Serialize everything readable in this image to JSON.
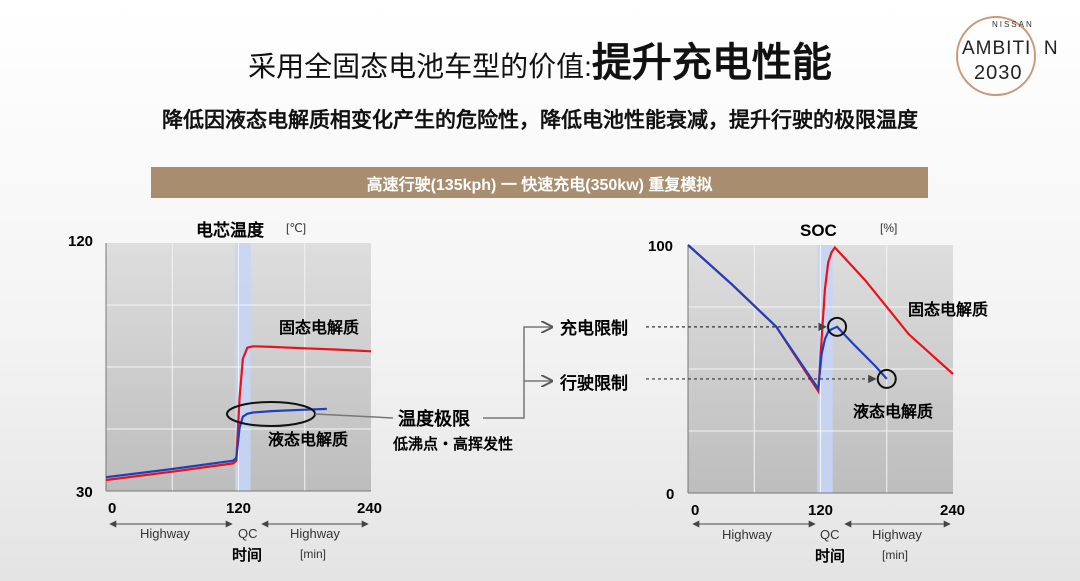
{
  "header": {
    "title_prefix": "采用全固态电池车型的价值:",
    "title_main": "提升充电性能",
    "subtitle": "降低因液态电解质相变化产生的危险性，降低电池性能衰减，提升行驶的极限温度",
    "banner": "高速行驶(135kph) 一 快速充电(350kw) 重复模拟"
  },
  "logo": {
    "brand": "NISSAN",
    "word": "AMBITI",
    "word_end": "N",
    "year": "2030",
    "ring_color": "#c79a7a"
  },
  "colors": {
    "solid": "#e8121c",
    "liquid": "#1f3fbf",
    "qc_band": "#c5d5f5",
    "banner": "#a88e6e"
  },
  "chart_data": [
    {
      "type": "line",
      "title": "电芯温度",
      "unit": "[℃]",
      "xlabel": "时间",
      "xunit": "[min]",
      "xticks": [
        "0",
        "120",
        "240"
      ],
      "yticks": [
        "30",
        "120"
      ],
      "xlim": [
        0,
        240
      ],
      "ylim": [
        30,
        120
      ],
      "segments": [
        "Highway",
        "QC",
        "Highway"
      ],
      "qc_range": [
        117,
        131
      ],
      "series": [
        {
          "name": "固态电解质",
          "x": [
            0,
            60,
            115,
            118,
            121,
            124,
            128,
            133,
            150,
            180,
            210,
            240
          ],
          "y": [
            34,
            37,
            40,
            41,
            64,
            78,
            82,
            82.5,
            82.3,
            81.8,
            81.3,
            80.7
          ]
        },
        {
          "name": "液态电解质",
          "x": [
            0,
            60,
            115,
            118,
            121,
            124,
            128,
            133,
            150,
            180,
            200
          ],
          "y": [
            35,
            38,
            41,
            42,
            53,
            57,
            58,
            58.5,
            59,
            59.5,
            59.8
          ]
        }
      ],
      "annotation": {
        "label": "温度极限",
        "sublabel": "低沸点・高挥发性"
      }
    },
    {
      "type": "line",
      "title": "SOC",
      "unit": "[%]",
      "xlabel": "时间",
      "xunit": "[min]",
      "xticks": [
        "0",
        "120",
        "240"
      ],
      "yticks": [
        "0",
        "100"
      ],
      "xlim": [
        0,
        240
      ],
      "ylim": [
        0,
        100
      ],
      "segments": [
        "Highway",
        "QC",
        "Highway"
      ],
      "qc_range": [
        117,
        131
      ],
      "series": [
        {
          "name": "固态电解质",
          "x": [
            0,
            40,
            80,
            118,
            121,
            124,
            127,
            130,
            133,
            160,
            200,
            240
          ],
          "y": [
            100,
            84,
            67,
            41,
            62,
            82,
            93,
            97,
            99,
            86,
            64,
            48
          ]
        },
        {
          "name": "液态电解质",
          "x": [
            0,
            40,
            80,
            118,
            121,
            124,
            127,
            130,
            135,
            150,
            170,
            180
          ],
          "y": [
            100,
            84,
            67,
            42,
            56,
            62,
            65,
            66,
            67,
            60,
            51,
            46
          ]
        }
      ],
      "limits": [
        {
          "label": "充电限制",
          "x": 135,
          "y": 67
        },
        {
          "label": "行驶限制",
          "x": 180,
          "y": 46
        }
      ]
    }
  ]
}
